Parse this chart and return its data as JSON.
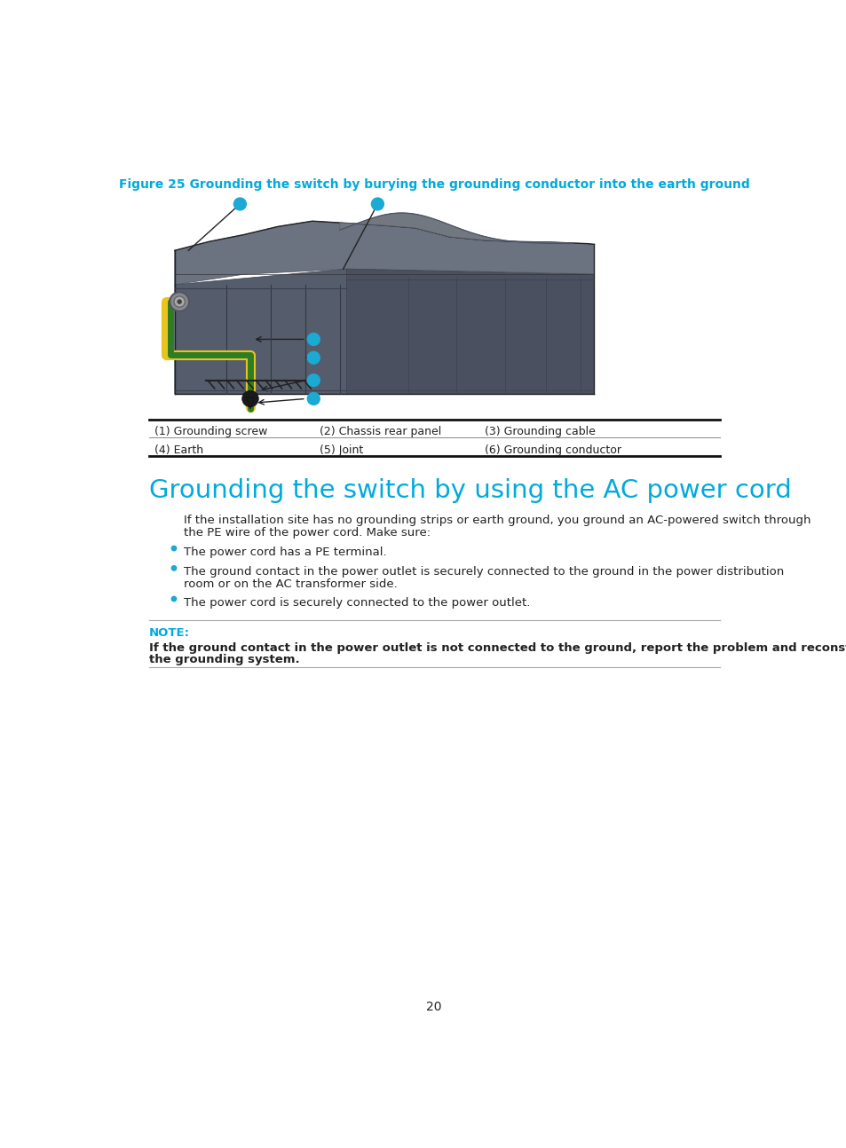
{
  "bg_color": "#ffffff",
  "figure_caption": "Figure 25 Grounding the switch by burying the grounding conductor into the earth ground",
  "figure_caption_color": "#00aadd",
  "figure_caption_fontsize": 10.0,
  "table_rows": [
    [
      "(1) Grounding screw",
      "(2) Chassis rear panel",
      "(3) Grounding cable"
    ],
    [
      "(4) Earth",
      "(5) Joint",
      "(6) Grounding conductor"
    ]
  ],
  "section_heading": "Grounding the switch by using the AC power cord",
  "section_heading_color": "#00aadd",
  "section_heading_fontsize": 21,
  "body_text1": "If the installation site has no grounding strips or earth ground, you ground an AC-powered switch through",
  "body_text2": "the PE wire of the power cord. Make sure:",
  "bullets": [
    "The power cord has a PE terminal.",
    "The ground contact in the power outlet is securely connected to the ground in the power distribution\nroom or on the AC transformer side.",
    "The power cord is securely connected to the power outlet."
  ],
  "note_label": "NOTE:",
  "note_label_color": "#00aadd",
  "note_text": "If the ground contact in the power outlet is not connected to the ground, report the problem and reconstruct\nthe grounding system.",
  "page_number": "20",
  "body_fontsize": 9.5,
  "note_fontsize": 9.5,
  "table_fontsize": 9.0,
  "blue_dot_color": "#1baad4",
  "yellow_wire_color": "#e8c420",
  "green_wire_color": "#2e7d22",
  "switch_top_color": "#6b7280",
  "switch_dark_color": "#454c5a",
  "switch_front_color": "#555c6b",
  "switch_right_color": "#4a5060"
}
